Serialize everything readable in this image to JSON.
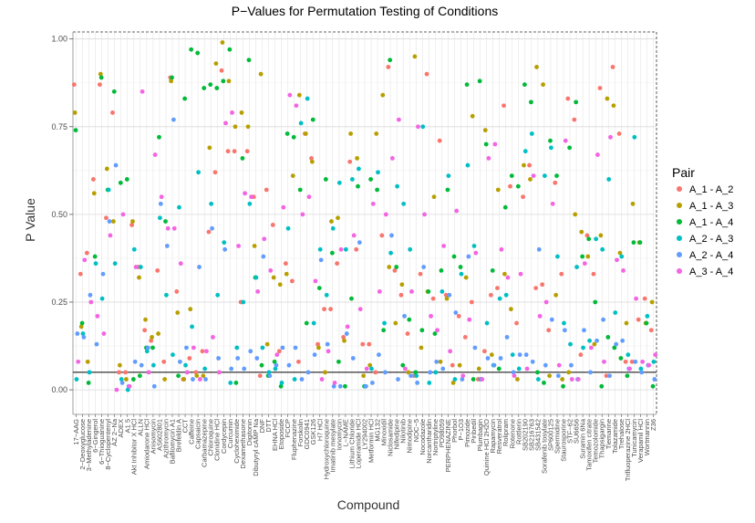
{
  "chart_data": {
    "type": "scatter",
    "title": "P−Values for Permutation Testing of Conditions",
    "xlabel": "Compound",
    "ylabel": "P Value",
    "ylim": [
      -0.07,
      1.02
    ],
    "yticks": [
      "0.00",
      "0.25",
      "0.50",
      "0.75",
      "1.00"
    ],
    "reference_line": 0.05,
    "legend": {
      "title": "Pair",
      "position": "right"
    },
    "grid": true,
    "categories": [
      "17−AAG",
      "2−Deoxyglucose",
      "3−Methyladenine",
      "6−Gingerol",
      "6−Thioguanine",
      "8−Cyclopentenyl",
      "AZ 2−Na",
      "ADEX",
      "A1 5",
      "Akt Inhibitor X HCl",
      "ALLN",
      "Amiodarone HCl",
      "Anisomycin",
      "AS602801",
      "Azithromycin",
      "Bafilomycin A1",
      "Brefeldin A",
      "CCT",
      "Caffeine",
      "Capsaicin",
      "Carbamazepine",
      "Chloroquine",
      "Clonidine HCl",
      "Cordycepin",
      "Curcumin",
      "Cycloheximide",
      "Dexamethasone",
      "Digitonin",
      "Dibutyryl cAMP Na",
      "DNF",
      "DTT",
      "EHNA HCl",
      "Etoposide",
      "FCCP",
      "Fluphenazine",
      "Forskolin",
      "GDC0941",
      "GSK126",
      "H7 HCl",
      "Hydroxychloroquine",
      "Imatinib mesylate",
      "Ionomycin",
      "L−NAME",
      "Lithium Chloride",
      "Loperamide HCl",
      "LY294002",
      "Metformin HCl",
      "MG132",
      "Minoxidil",
      "Niclosamide",
      "Nifedipine",
      "Nilotinib",
      "Nimodipine",
      "NOC−5",
      "Nocodazole",
      "Norcantharidin",
      "Nortriptyline",
      "PD98059",
      "PERPHENAZINE",
      "Phorbol",
      "P−1O3",
      "Pimozide",
      "Piribedil",
      "Plumbagin",
      "Quinine HCl 2H2O",
      "Rapamycin",
      "Resveratrol",
      "Rolipram",
      "Rotenone",
      "Rottlerin",
      "SB202190",
      "SB216763",
      "SB431542",
      "Sorafenib tosylate",
      "SP600125",
      "Spermidine",
      "Staurosporine",
      "STF−62",
      "SU6656",
      "Suramin 6Na",
      "Tamoxifen citrate",
      "Temozolomide",
      "Thapsigargin",
      "Tiemarine",
      "Tolazamide",
      "Trehalose",
      "Trifluoperazine 2HCl",
      "Tunicamycin",
      "Verapamil HCl",
      "Wortmannin",
      "Z36"
    ],
    "x_tick_labels": [
      "17−AAG",
      "2−Deoxyglucose",
      "3−Methyladenine",
      "6−Gingerol",
      "6−Thioguanine",
      "8−Cyclopentenyl",
      "AZ 2−Na",
      "ADEX",
      "A1 5",
      "Akt Inhibitor X HCl",
      "ALLN",
      "Amiodarone HCl",
      "Anisomycin",
      "AS602801",
      "Azithromycin",
      "Bafilomycin A1",
      "Brefeldin A",
      "CCT",
      "Caffeine",
      "Capsaicin",
      "Carbamazepine",
      "Chloroquine",
      "Clonidine HCl",
      "Cordycepin",
      "Curcumin",
      "Cycloheximide",
      "Dexamethasone",
      "Digitonin",
      "Dibutyryl cAMP Na",
      "DNF",
      "DTT",
      "EHNA HCl",
      "Etoposide",
      "FCCP",
      "Fluphenazine",
      "Forskolin",
      "GDC0941",
      "GSK126",
      "H7 HCl",
      "Hydroxychloroquine",
      "Imatinib mesylate",
      "Ionomycin",
      "L−NAME",
      "Lithium Chloride",
      "Loperamide HCl",
      "LY294002",
      "Metformin HCl",
      "MG132",
      "Minoxidil",
      "Niclosamide",
      "Nifedipine",
      "Nilotinib",
      "Nimodipine",
      "NOC−5",
      "Nocodazole",
      "Norcantharidin",
      "Nortriptyline",
      "PD98059",
      "PERPHENAZINE",
      "Phorbol",
      "P−1O3",
      "Pimozide",
      "Piribedil",
      "Plumbagin",
      "Quinine HCl 2H2O",
      "Rapamycin",
      "Resveratrol",
      "Rolipram",
      "Rotenone",
      "Rottlerin",
      "SB202190",
      "SB216763",
      "SB431542",
      "Sorafenib tosylate",
      "SP600125",
      "Spermidine",
      "Staurosporine",
      "STF−62",
      "SU6656",
      "Suramin 6Na",
      "Tamoxifen citrate",
      "Temozolomide",
      "Thapsigargin",
      "Tiemarine",
      "Tolazamide",
      "Trehalose",
      "Trifluoperazine 2HCl",
      "Tunicamycin",
      "Verapamil HCl",
      "Wortmannin",
      "Z36"
    ],
    "series": [
      {
        "name": "A_1 - A_2",
        "color": "#F8766D",
        "values": [
          0.87,
          0.33,
          0.39,
          0.6,
          0.87,
          0.49,
          0.79,
          0.05,
          0.05,
          0.47,
          0.35,
          0.17,
          0.14,
          0.34,
          0.08,
          0.89,
          0.28,
          0.03,
          0.09,
          0.05,
          0.11,
          0.45,
          0.62,
          0.91,
          0.68,
          0.68,
          0.25,
          0.68,
          0.55,
          0.04,
          0.57,
          0.47,
          0.11,
          0.36,
          0.31,
          0.08,
          0.73,
          0.66,
          0.13,
          0.23,
          0.23,
          0.36,
          0.15,
          0.65,
          0.4,
          0.13,
          0.13,
          0.05,
          0.44,
          0.92,
          0.34,
          0.27,
          0.16,
          0.04,
          0.33,
          0.9,
          0.26,
          0.71,
          0.27,
          0.07,
          0.21,
          0.15,
          0.25,
          0.03,
          0.11,
          0.27,
          0.29,
          0.81,
          0.58,
          0.19,
          0.55,
          0.64,
          0.29,
          0.3,
          0.17,
          0.59,
          0.33,
          0.83,
          0.77,
          0.1,
          0.44,
          0.33,
          0.86,
          0.04,
          0.92,
          0.73,
          0.08,
          0.08,
          0.2,
          0.26,
          0.17
        ]
      },
      {
        "name": "A_1 - A_3",
        "color": "#B79F00",
        "values": [
          0.79,
          0.18,
          0.08,
          0.56,
          0.9,
          0.63,
          0.48,
          0.07,
          0.03,
          0.48,
          0.32,
          0.2,
          0.15,
          0.16,
          0.03,
          0.88,
          0.22,
          0.03,
          0.23,
          0.04,
          0.04,
          0.69,
          0.93,
          0.99,
          0.88,
          0.75,
          0.79,
          0.75,
          0.41,
          0.9,
          0.13,
          0.32,
          0.3,
          0.33,
          0.61,
          0.84,
          0.73,
          0.65,
          0.12,
          0.05,
          0.48,
          0.49,
          0.14,
          0.73,
          0.66,
          0.04,
          0.07,
          0.73,
          0.84,
          0.35,
          0.19,
          0.3,
          0.05,
          0.95,
          0.12,
          0.28,
          0.55,
          0.08,
          0.26,
          0.02,
          0.07,
          0.32,
          0.78,
          0.06,
          0.74,
          0.1,
          0.57,
          0.33,
          0.23,
          0.03,
          0.64,
          0.6,
          0.92,
          0.87,
          0.04,
          0.27,
          0.03,
          0.05,
          0.5,
          0.45,
          0.38,
          0.13,
          0.44,
          0.83,
          0.81,
          0.39,
          0.19,
          0.53,
          0.42,
          0.19,
          0.25
        ]
      },
      {
        "name": "A_1 - A_4",
        "color": "#00BA38",
        "values": [
          0.74,
          0.19,
          0.02,
          0.38,
          0.89,
          0.57,
          0.85,
          0.59,
          0.6,
          0.03,
          0.04,
          0.12,
          0.12,
          0.72,
          0.48,
          0.89,
          0.04,
          0.83,
          0.97,
          0.96,
          0.86,
          0.87,
          0.86,
          0.88,
          0.97,
          0.02,
          0.66,
          0.94,
          0.32,
          0.07,
          0.04,
          0.08,
          0.01,
          0.73,
          0.72,
          0.57,
          0.19,
          0.77,
          0.29,
          0.6,
          0.39,
          0.08,
          0.01,
          0.26,
          0.58,
          0.01,
          0.6,
          0.57,
          0.17,
          0.94,
          0.35,
          0.07,
          0.2,
          0.05,
          0.17,
          0.28,
          0.16,
          0.34,
          0.57,
          0.38,
          0.35,
          0.87,
          0.03,
          0.88,
          0.7,
          0.34,
          0.06,
          0.52,
          0.61,
          0.58,
          0.87,
          0.82,
          0.05,
          0.02,
          0.71,
          0.61,
          0.01,
          0.69,
          0.82,
          0.38,
          0.43,
          0.25,
          0.01,
          0.15,
          0.12,
          0.09,
          0.04,
          0.42,
          0.42,
          0.19,
          0.01
        ]
      },
      {
        "name": "A_2 - A_3",
        "color": "#00BFC4",
        "values": [
          0.03,
          0.16,
          0.05,
          0.36,
          0.26,
          0.57,
          0.36,
          0.03,
          0.0,
          0.4,
          0.35,
          0.11,
          0.07,
          0.49,
          0.27,
          0.1,
          0.52,
          0.07,
          0.18,
          0.62,
          0.06,
          0.53,
          0.27,
          0.42,
          0.02,
          0.12,
          0.25,
          0.53,
          0.32,
          0.12,
          0.05,
          0.06,
          0.02,
          0.46,
          0.03,
          0.76,
          0.83,
          0.19,
          0.4,
          0.27,
          0.46,
          0.59,
          0.4,
          0.6,
          0.63,
          0.01,
          0.06,
          0.62,
          0.19,
          0.39,
          0.58,
          0.53,
          0.4,
          0.04,
          0.75,
          0.02,
          0.05,
          0.28,
          0.61,
          0.03,
          0.33,
          0.64,
          0.41,
          0.03,
          0.19,
          0.07,
          0.26,
          0.27,
          0.1,
          0.06,
          0.68,
          0.73,
          0.03,
          0.61,
          0.69,
          0.38,
          0.19,
          0.13,
          0.35,
          0.12,
          0.14,
          0.43,
          0.4,
          0.6,
          0.22,
          0.38,
          0.1,
          0.72,
          0.06,
          0.21,
          0.08
        ]
      },
      {
        "name": "A_2 - A_4",
        "color": "#619CFF",
        "values": [
          0.16,
          0.15,
          0.27,
          0.13,
          0.33,
          0.48,
          0.64,
          0.02,
          0.01,
          0.08,
          0.07,
          0.12,
          0.01,
          0.53,
          0.41,
          0.77,
          0.08,
          0.12,
          0.03,
          0.35,
          0.03,
          0.46,
          0.09,
          0.4,
          0.06,
          0.09,
          0.06,
          0.11,
          0.09,
          0.38,
          0.04,
          0.07,
          0.12,
          0.07,
          0.12,
          0.03,
          0.05,
          0.1,
          0.37,
          0.13,
          0.01,
          0.01,
          0.16,
          0.09,
          0.42,
          0.01,
          0.02,
          0.1,
          0.05,
          0.44,
          0.03,
          0.21,
          0.04,
          0.02,
          0.35,
          0.05,
          0.08,
          0.06,
          0.27,
          0.22,
          0.03,
          0.38,
          0.12,
          0.03,
          0.09,
          0.07,
          0.09,
          0.15,
          0.05,
          0.1,
          0.1,
          0.08,
          0.4,
          0.07,
          0.2,
          0.04,
          0.17,
          0.07,
          0.03,
          0.17,
          0.05,
          0.14,
          0.2,
          0.04,
          0.13,
          0.14,
          0.06,
          0.08,
          0.05,
          0.07,
          0.03
        ]
      },
      {
        "name": "A_3 - A_4",
        "color": "#F564E3",
        "values": [
          0.08,
          0.37,
          0.25,
          0.21,
          0.16,
          0.44,
          0.0,
          0.5,
          0.01,
          0.35,
          0.85,
          0.05,
          0.67,
          0.55,
          0.46,
          0.46,
          0.36,
          0.05,
          0.12,
          0.03,
          0.11,
          0.15,
          0.05,
          0.76,
          0.79,
          0.41,
          0.56,
          0.55,
          0.28,
          0.43,
          0.34,
          0.1,
          0.52,
          0.84,
          0.81,
          0.5,
          0.55,
          0.31,
          0.03,
          0.11,
          0.02,
          0.4,
          0.18,
          0.44,
          0.23,
          0.06,
          0.53,
          0.28,
          0.5,
          0.66,
          0.77,
          0.06,
          0.28,
          0.75,
          0.5,
          0.21,
          0.17,
          0.41,
          0.11,
          0.51,
          0.04,
          0.2,
          0.39,
          0.03,
          0.66,
          0.7,
          0.4,
          0.32,
          0.04,
          0.33,
          0.06,
          0.61,
          0.21,
          0.25,
          0.53,
          0.07,
          0.71,
          0.03,
          0.03,
          0.36,
          0.12,
          0.67,
          0.08,
          0.72,
          0.37,
          0.34,
          0.06,
          0.26,
          0.08,
          0.07,
          0.1
        ]
      }
    ]
  }
}
